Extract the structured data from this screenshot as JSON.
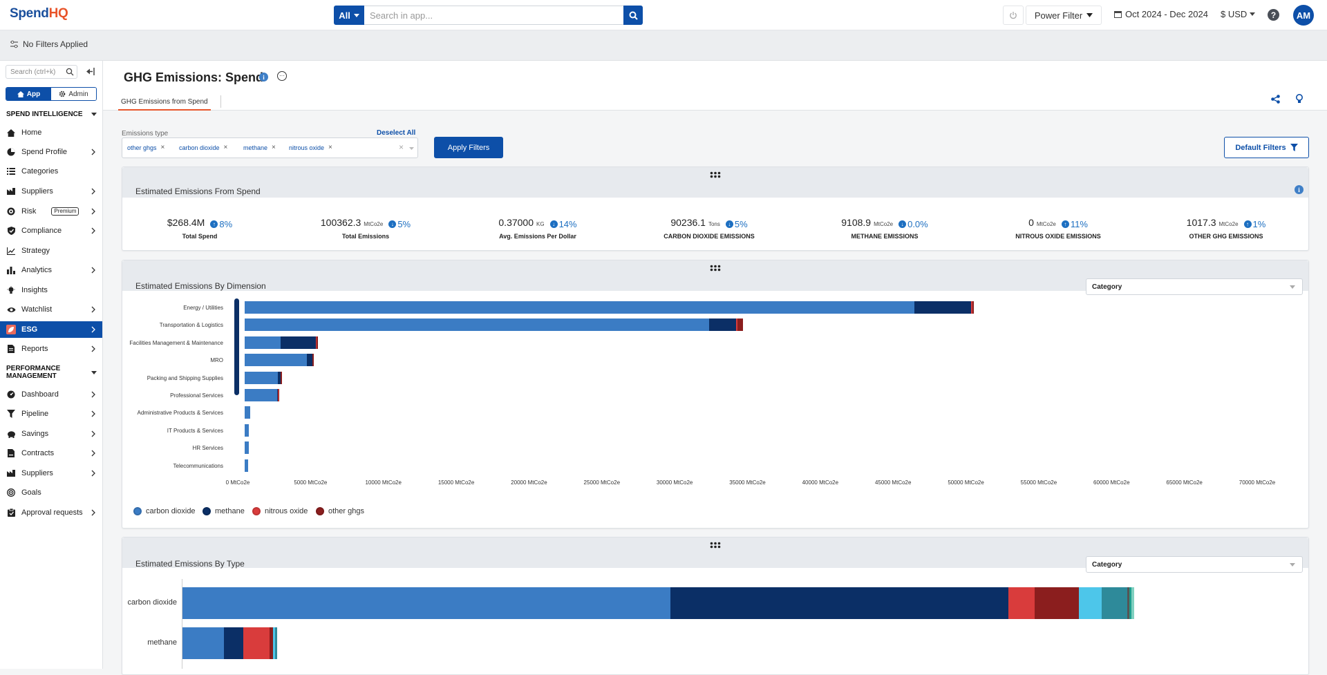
{
  "app": {
    "logo_main": "Spend",
    "logo_accent": "HQ"
  },
  "topbar": {
    "scope": "All",
    "search_placeholder": "Search in app...",
    "power_filter": "Power Filter",
    "date_range": "Oct 2024 - Dec 2024",
    "currency": "$ USD",
    "help": "?",
    "avatar": "AM"
  },
  "filterbar": {
    "status": "No Filters Applied"
  },
  "sidebar": {
    "search_placeholder": "Search (ctrl+k)",
    "toggle_app": "App",
    "toggle_admin": "Admin",
    "section_spend": "SPEND INTELLIGENCE",
    "section_perf_1": "PERFORMANCE",
    "section_perf_2": "MANAGEMENT",
    "items": [
      {
        "label": "Home"
      },
      {
        "label": "Spend Profile"
      },
      {
        "label": "Categories"
      },
      {
        "label": "Suppliers"
      },
      {
        "label": "Risk",
        "badge": "Premium"
      },
      {
        "label": "Compliance"
      },
      {
        "label": "Strategy"
      },
      {
        "label": "Analytics"
      },
      {
        "label": "Insights"
      },
      {
        "label": "Watchlist"
      },
      {
        "label": "ESG"
      },
      {
        "label": "Reports"
      }
    ],
    "perf_items": [
      {
        "label": "Dashboard"
      },
      {
        "label": "Pipeline"
      },
      {
        "label": "Savings"
      },
      {
        "label": "Contracts"
      },
      {
        "label": "Suppliers"
      },
      {
        "label": "Goals"
      },
      {
        "label": "Approval requests"
      }
    ]
  },
  "header": {
    "title": "GHG Emissions: Spend",
    "tab": "GHG Emissions from Spend"
  },
  "filters": {
    "label": "Emissions type",
    "deselect": "Deselect All",
    "chips": [
      "other ghgs",
      "carbon dioxide",
      "methane",
      "nitrous oxide"
    ],
    "apply": "Apply Filters",
    "default": "Default Filters"
  },
  "kpi_card": {
    "title": "Estimated Emissions From Spend",
    "kpis": [
      {
        "value": "$268.4M",
        "unit": "",
        "change": "8%",
        "direction": "up",
        "label": "Total Spend"
      },
      {
        "value": "100362.3",
        "unit": "MtCo2e",
        "change": "5%",
        "direction": "down",
        "label": "Total Emissions"
      },
      {
        "value": "0.37000",
        "unit": "KG",
        "change": "14%",
        "direction": "down",
        "label": "Avg. Emissions Per Dollar"
      },
      {
        "value": "90236.1",
        "unit": "Tons",
        "change": "5%",
        "direction": "down",
        "label": "CARBON DIOXIDE EMISSIONS"
      },
      {
        "value": "9108.9",
        "unit": "MtCo2e",
        "change": "0.0%",
        "direction": "down",
        "label": "METHANE EMISSIONS"
      },
      {
        "value": "0",
        "unit": "MtCo2e",
        "change": "11%",
        "direction": "up",
        "label": "NITROUS OXIDE EMISSIONS"
      },
      {
        "value": "1017.3",
        "unit": "MtCo2e",
        "change": "1%",
        "direction": "up",
        "label": "OTHER GHG EMISSIONS"
      }
    ]
  },
  "dim_card": {
    "title": "Estimated Emissions By Dimension",
    "select": "Category"
  },
  "type_card": {
    "title": "Estimated Emissions By Type",
    "select": "Category"
  },
  "colors": {
    "carbon_dioxide": "#3b7cc4",
    "methane": "#0b2f66",
    "nitrous_oxide": "#d93c3c",
    "other_ghgs": "#8b1e1e",
    "cyan": "#4dc6ea",
    "teal": "#2e8a9a"
  },
  "chart_data": [
    {
      "type": "bar",
      "orientation": "horizontal",
      "stacked": true,
      "categories": [
        "Energy / Utilities",
        "Transportation & Logistics",
        "Facilities Management & Maintenance",
        "MRO",
        "Packing and Shipping Supplies",
        "Professional Services",
        "Administrative Products & Services",
        "IT Products & Services",
        "HR Services",
        "Telecommunications"
      ],
      "series": [
        {
          "name": "carbon dioxide",
          "values": [
            46000,
            31900,
            2450,
            4250,
            2300,
            2250,
            400,
            300,
            280,
            250
          ]
        },
        {
          "name": "methane",
          "values": [
            3900,
            1850,
            2450,
            400,
            150,
            50,
            0,
            0,
            0,
            0
          ]
        },
        {
          "name": "nitrous oxide",
          "values": [
            50,
            80,
            50,
            20,
            30,
            10,
            0,
            0,
            0,
            0
          ]
        },
        {
          "name": "other ghgs",
          "values": [
            100,
            400,
            80,
            30,
            40,
            20,
            0,
            0,
            0,
            0
          ]
        }
      ],
      "xlim": [
        0,
        70000
      ],
      "x_ticks": [
        "0 MtCo2e",
        "5000 MtCo2e",
        "10000 MtCo2e",
        "15000 MtCo2e",
        "20000 MtCo2e",
        "25000 MtCo2e",
        "30000 MtCo2e",
        "35000 MtCo2e",
        "40000 MtCo2e",
        "45000 MtCo2e",
        "50000 MtCo2e",
        "55000 MtCo2e",
        "60000 MtCo2e",
        "65000 MtCo2e",
        "70000 MtCo2e"
      ],
      "legend": [
        "carbon dioxide",
        "methane",
        "nitrous oxide",
        "other ghgs"
      ],
      "legend_position": "bottom-left"
    },
    {
      "type": "bar",
      "orientation": "horizontal",
      "stacked": true,
      "categories": [
        "carbon dioxide",
        "methane"
      ],
      "segments": [
        [
          {
            "value": 41000,
            "color": "#3b7cc4"
          },
          {
            "value": 28400,
            "color": "#0b2f66"
          },
          {
            "value": 2200,
            "color": "#d93c3c"
          },
          {
            "value": 3700,
            "color": "#8b1e1e"
          },
          {
            "value": 1950,
            "color": "#4dc6ea"
          },
          {
            "value": 2100,
            "color": "#2e8a9a"
          },
          {
            "value": 200,
            "color": "#555555"
          },
          {
            "value": 200,
            "color": "#1f9e8e"
          },
          {
            "value": 200,
            "color": "#7fd0c0"
          }
        ],
        [
          {
            "value": 3500,
            "color": "#3b7cc4"
          },
          {
            "value": 1600,
            "color": "#0b2f66"
          },
          {
            "value": 2200,
            "color": "#d93c3c"
          },
          {
            "value": 300,
            "color": "#8b1e1e"
          },
          {
            "value": 200,
            "color": "#4dc6ea"
          },
          {
            "value": 150,
            "color": "#2e8a9a"
          }
        ]
      ],
      "xlim": [
        0,
        90000
      ]
    }
  ]
}
